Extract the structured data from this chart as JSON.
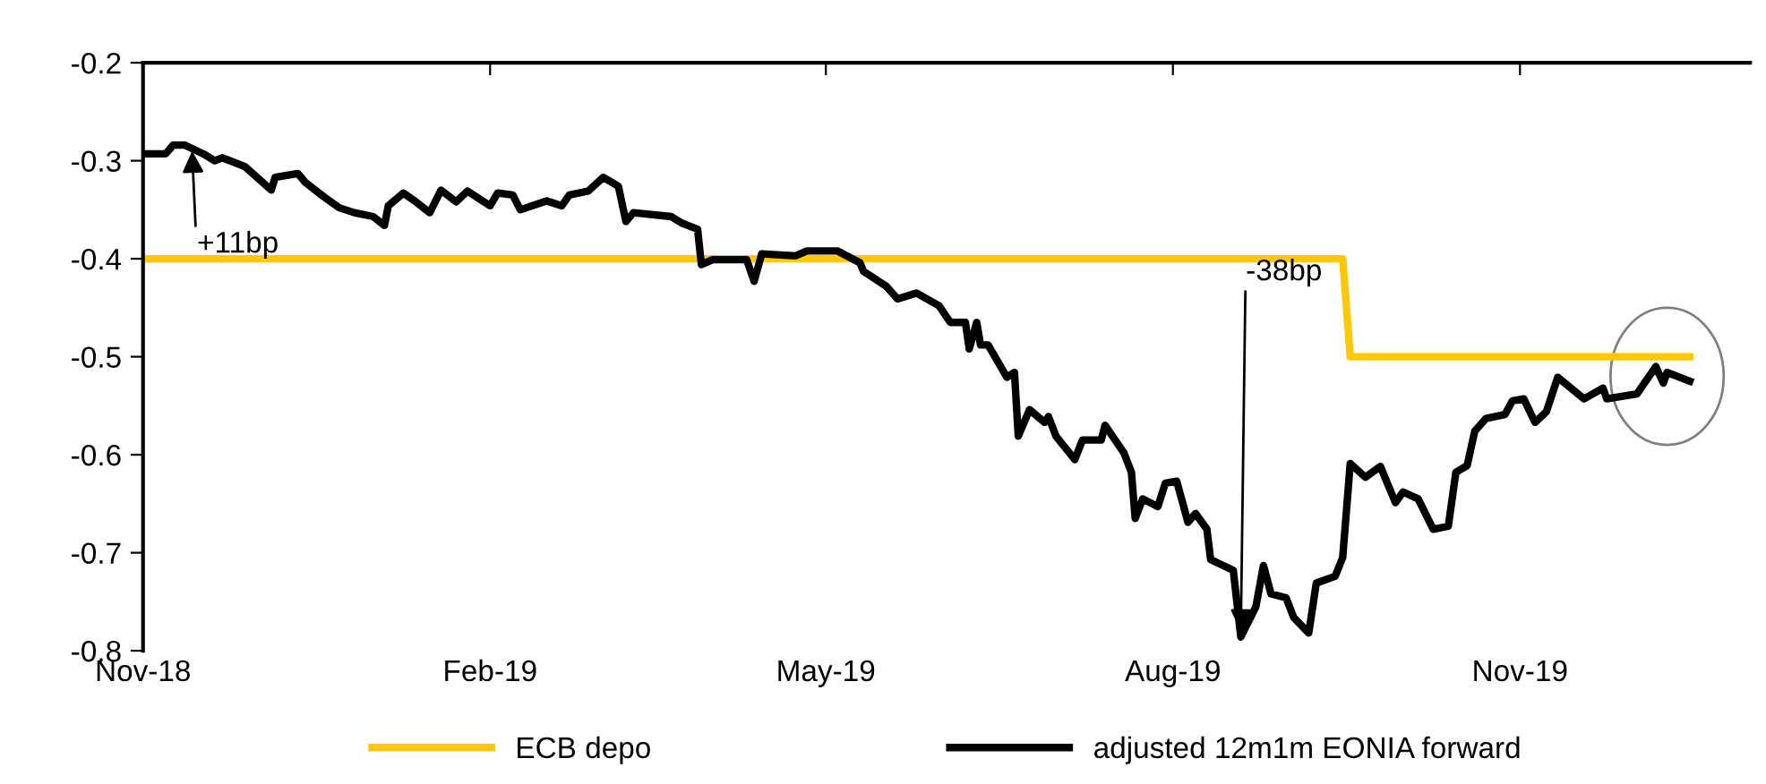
{
  "chart_data": {
    "type": "line",
    "x": [
      "2018-11-01",
      "2018-11-07",
      "2018-11-09",
      "2018-11-12",
      "2018-11-17",
      "2018-11-20",
      "2018-11-22",
      "2018-11-28",
      "2018-12-05",
      "2018-12-06",
      "2018-12-12",
      "2018-12-14",
      "2018-12-19",
      "2018-12-23",
      "2018-12-27",
      "2019-01-01",
      "2019-01-04",
      "2019-01-05",
      "2019-01-09",
      "2019-01-12",
      "2019-01-16",
      "2019-01-19",
      "2019-01-23",
      "2019-01-26",
      "2019-02-01",
      "2019-02-03",
      "2019-02-07",
      "2019-02-09",
      "2019-02-16",
      "2019-02-20",
      "2019-02-22",
      "2019-02-27",
      "2019-03-03",
      "2019-03-07",
      "2019-03-09",
      "2019-03-11",
      "2019-03-21",
      "2019-03-24",
      "2019-03-28",
      "2019-03-29",
      "2019-04-01",
      "2019-04-10",
      "2019-04-12",
      "2019-04-14",
      "2019-04-23",
      "2019-04-26",
      "2019-05-04",
      "2019-05-10",
      "2019-05-11",
      "2019-05-17",
      "2019-05-20",
      "2019-05-25",
      "2019-05-31",
      "2019-06-03",
      "2019-06-07",
      "2019-06-08",
      "2019-06-10",
      "2019-06-11",
      "2019-06-13",
      "2019-06-18",
      "2019-06-20",
      "2019-06-21",
      "2019-06-24",
      "2019-06-28",
      "2019-06-29",
      "2019-07-01",
      "2019-07-06",
      "2019-07-08",
      "2019-07-13",
      "2019-07-14",
      "2019-07-19",
      "2019-07-21",
      "2019-07-22",
      "2019-07-24",
      "2019-07-28",
      "2019-07-30",
      "2019-08-02",
      "2019-08-05",
      "2019-08-07",
      "2019-08-10",
      "2019-08-11",
      "2019-08-17",
      "2019-08-19",
      "2019-08-23",
      "2019-08-25",
      "2019-08-27",
      "2019-08-31",
      "2019-09-02",
      "2019-09-06",
      "2019-09-08",
      "2019-09-13",
      "2019-09-15",
      "2019-09-17",
      "2019-09-21",
      "2019-09-25",
      "2019-09-29",
      "2019-10-01",
      "2019-10-05",
      "2019-10-09",
      "2019-10-13",
      "2019-10-15",
      "2019-10-18",
      "2019-10-20",
      "2019-10-23",
      "2019-10-28",
      "2019-10-30",
      "2019-11-02",
      "2019-11-05",
      "2019-11-08",
      "2019-11-11",
      "2019-11-18",
      "2019-11-23",
      "2019-11-24",
      "2019-12-02",
      "2019-12-07",
      "2019-12-09",
      "2019-12-10",
      "2019-12-16"
    ],
    "series": [
      {
        "name": "ECB depo",
        "color": "#ffc800",
        "x": [
          "2018-11-01",
          "2019-09-15",
          "2019-09-17",
          "2019-12-16"
        ],
        "values": [
          -0.4,
          -0.4,
          -0.5,
          -0.5
        ]
      },
      {
        "name": "adjusted 12m1m EONIA forward",
        "color": "#000000",
        "values": [
          -0.293,
          -0.293,
          -0.284,
          -0.284,
          -0.293,
          -0.3,
          -0.297,
          -0.306,
          -0.33,
          -0.317,
          -0.313,
          -0.322,
          -0.337,
          -0.348,
          -0.353,
          -0.357,
          -0.366,
          -0.346,
          -0.333,
          -0.341,
          -0.353,
          -0.33,
          -0.342,
          -0.331,
          -0.346,
          -0.333,
          -0.335,
          -0.35,
          -0.341,
          -0.346,
          -0.335,
          -0.331,
          -0.317,
          -0.326,
          -0.362,
          -0.353,
          -0.357,
          -0.364,
          -0.37,
          -0.406,
          -0.401,
          -0.401,
          -0.423,
          -0.395,
          -0.397,
          -0.392,
          -0.392,
          -0.404,
          -0.413,
          -0.428,
          -0.441,
          -0.435,
          -0.448,
          -0.465,
          -0.465,
          -0.492,
          -0.465,
          -0.488,
          -0.488,
          -0.521,
          -0.516,
          -0.581,
          -0.554,
          -0.567,
          -0.561,
          -0.581,
          -0.605,
          -0.585,
          -0.585,
          -0.57,
          -0.598,
          -0.618,
          -0.665,
          -0.645,
          -0.653,
          -0.629,
          -0.627,
          -0.669,
          -0.66,
          -0.676,
          -0.707,
          -0.718,
          -0.786,
          -0.755,
          -0.713,
          -0.742,
          -0.746,
          -0.766,
          -0.782,
          -0.731,
          -0.724,
          -0.705,
          -0.609,
          -0.623,
          -0.612,
          -0.649,
          -0.638,
          -0.645,
          -0.676,
          -0.673,
          -0.618,
          -0.611,
          -0.576,
          -0.563,
          -0.559,
          -0.545,
          -0.543,
          -0.567,
          -0.556,
          -0.521,
          -0.543,
          -0.532,
          -0.543,
          -0.538,
          -0.51,
          -0.527,
          -0.516,
          -0.525
        ]
      }
    ],
    "xlim": [
      "2018-11-01",
      "2020-01-01"
    ],
    "xticks": [
      {
        "value": "2018-11-01",
        "label": "Nov-18"
      },
      {
        "value": "2019-02-01",
        "label": "Feb-19"
      },
      {
        "value": "2019-05-01",
        "label": "May-19"
      },
      {
        "value": "2019-08-01",
        "label": "Aug-19"
      },
      {
        "value": "2019-11-01",
        "label": "Nov-19"
      }
    ],
    "ylim": [
      -0.8,
      -0.2
    ],
    "yticks": [
      -0.8,
      -0.7,
      -0.6,
      -0.5,
      -0.4,
      -0.3,
      -0.2
    ],
    "annotations": [
      {
        "text": "+11bp",
        "x": "2018-11-14",
        "y": -0.29
      },
      {
        "text": "-38bp",
        "x": "2019-08-19",
        "y": -0.78
      }
    ],
    "legend": "bottom",
    "grid": false,
    "line_style": "solid",
    "marker": "none"
  }
}
